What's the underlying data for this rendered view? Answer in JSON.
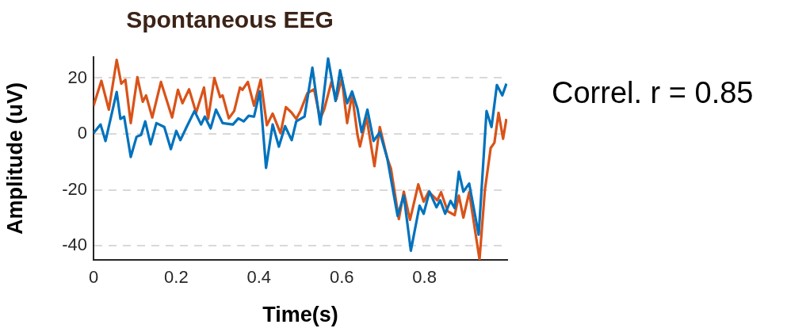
{
  "chart_data": {
    "type": "line",
    "title": "Spontaneous EEG",
    "xlabel": "Time(s)",
    "ylabel": "Amplitude (uV)",
    "annotations": [
      "Correl. r = 0.85"
    ],
    "xlim": [
      0,
      1
    ],
    "xticks": [
      0,
      0.2,
      0.4,
      0.6,
      0.8
    ],
    "ylim": [
      -45,
      27.5
    ],
    "yticks": [
      -40,
      -20,
      0,
      20
    ],
    "grid": "y",
    "series": [
      {
        "color": "#0072bd",
        "x": [
          0,
          0.017,
          0.029,
          0.056,
          0.065,
          0.074,
          0.09,
          0.104,
          0.115,
          0.125,
          0.138,
          0.152,
          0.171,
          0.187,
          0.2,
          0.21,
          0.225,
          0.244,
          0.26,
          0.269,
          0.283,
          0.296,
          0.312,
          0.337,
          0.35,
          0.363,
          0.375,
          0.388,
          0.402,
          0.417,
          0.433,
          0.448,
          0.463,
          0.479,
          0.49,
          0.51,
          0.529,
          0.548,
          0.567,
          0.585,
          0.596,
          0.613,
          0.625,
          0.638,
          0.648,
          0.662,
          0.677,
          0.692,
          0.71,
          0.735,
          0.75,
          0.767,
          0.788,
          0.798,
          0.812,
          0.829,
          0.838,
          0.85,
          0.863,
          0.873,
          0.883,
          0.894,
          0.908,
          0.931,
          0.95,
          0.962,
          0.975,
          0.988,
          0.998
        ],
        "values": [
          0.3,
          3.4,
          -2.5,
          15,
          5.4,
          6.2,
          -8.2,
          -1,
          -0.3,
          4.5,
          -3.7,
          3.9,
          2.5,
          -5.4,
          1.1,
          -2.2,
          2.5,
          8.2,
          3.4,
          6.2,
          2,
          8.7,
          3.9,
          3.4,
          5.6,
          4.5,
          6.5,
          6.2,
          15.2,
          -12.1,
          3.4,
          -4.5,
          2.8,
          -2.2,
          4.5,
          6.2,
          23.7,
          3.4,
          27,
          11.8,
          22.8,
          11,
          15.2,
          9,
          0.6,
          8.7,
          -2.5,
          0.6,
          -8.7,
          -29.3,
          -22,
          -41.7,
          -25.6,
          -28.5,
          -20.6,
          -26.2,
          -23.7,
          -28.5,
          -23.9,
          -26.5,
          -13.5,
          -20.6,
          -17.7,
          -36,
          8.2,
          2.5,
          17.5,
          13.8,
          18
        ]
      },
      {
        "color": "#d95319",
        "x": [
          0,
          0.019,
          0.037,
          0.056,
          0.067,
          0.077,
          0.09,
          0.106,
          0.119,
          0.127,
          0.142,
          0.163,
          0.19,
          0.204,
          0.215,
          0.231,
          0.248,
          0.267,
          0.277,
          0.292,
          0.306,
          0.312,
          0.327,
          0.34,
          0.354,
          0.36,
          0.373,
          0.388,
          0.404,
          0.419,
          0.433,
          0.452,
          0.465,
          0.479,
          0.49,
          0.5,
          0.517,
          0.533,
          0.548,
          0.558,
          0.575,
          0.587,
          0.6,
          0.613,
          0.625,
          0.638,
          0.644,
          0.66,
          0.679,
          0.692,
          0.71,
          0.719,
          0.738,
          0.75,
          0.765,
          0.785,
          0.798,
          0.81,
          0.825,
          0.831,
          0.84,
          0.856,
          0.873,
          0.883,
          0.894,
          0.908,
          0.933,
          0.946,
          0.96,
          0.969,
          0.979,
          0.99,
          0.998
        ],
        "values": [
          10.1,
          19,
          8.7,
          26.5,
          18,
          19.4,
          3.9,
          20.3,
          11.5,
          13.8,
          5.9,
          18.6,
          5.9,
          15.8,
          11,
          16,
          7.6,
          16.6,
          5.4,
          20,
          13.2,
          13.8,
          5.6,
          8.2,
          16.6,
          15.8,
          18.6,
          10.1,
          19.4,
          3.1,
          7.3,
          0.3,
          9.6,
          7.6,
          5.4,
          8.2,
          14.6,
          16,
          5.4,
          9,
          18.6,
          12.4,
          20,
          3.9,
          14.2,
          -0.3,
          -4.5,
          5.9,
          -11.5,
          2.5,
          -8.7,
          -12.4,
          -30.4,
          -20.6,
          -30.7,
          -18,
          -24.2,
          -20.6,
          -22.8,
          -23.7,
          -20.8,
          -27.6,
          -29,
          -22,
          -29.9,
          -20.8,
          -44.8,
          -20,
          -5,
          -3.1,
          7.6,
          -1.7,
          5.4
        ]
      }
    ]
  }
}
